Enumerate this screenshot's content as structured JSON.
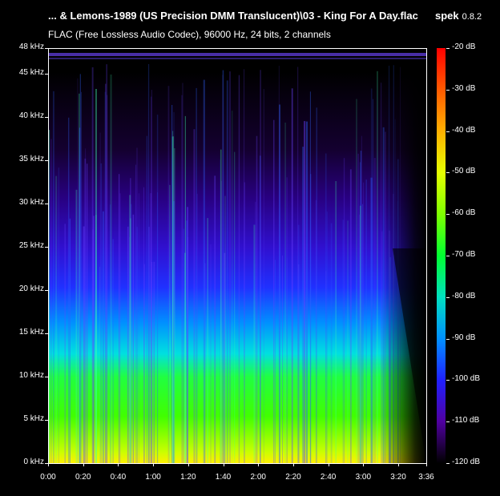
{
  "window": {
    "title": "... & Lemons-1989 (US Precision DMM Translucent)\\03 - King For A Day.flac",
    "app_name": "spek",
    "app_version": "0.8.2",
    "subtitle": "FLAC (Free Lossless Audio Codec), 96000 Hz, 24 bits, 2 channels"
  },
  "freq_axis": {
    "labels": [
      "48 kHz",
      "45 kHz",
      "40 kHz",
      "35 kHz",
      "30 kHz",
      "25 kHz",
      "20 kHz",
      "15 kHz",
      "10 kHz",
      "5 kHz",
      "0 kHz"
    ],
    "values_khz": [
      48,
      45,
      40,
      35,
      30,
      25,
      20,
      15,
      10,
      5,
      0
    ],
    "max_khz": 48
  },
  "time_axis": {
    "labels": [
      "0:00",
      "0:20",
      "0:40",
      "1:00",
      "1:20",
      "1:40",
      "2:00",
      "2:20",
      "2:40",
      "3:00",
      "3:20",
      "3:36"
    ],
    "values_s": [
      0,
      20,
      40,
      60,
      80,
      100,
      120,
      140,
      160,
      180,
      200,
      216
    ],
    "max_s": 216
  },
  "db_scale": {
    "labels": [
      "-20 dB",
      "-30 dB",
      "-40 dB",
      "-50 dB",
      "-60 dB",
      "-70 dB",
      "-80 dB",
      "-90 dB",
      "-100 dB",
      "-110 dB",
      "-120 dB"
    ],
    "values": [
      -20,
      -30,
      -40,
      -50,
      -60,
      -70,
      -80,
      -90,
      -100,
      -110,
      -120
    ]
  },
  "colors": {
    "background": "#000000",
    "text": "#ffffff"
  }
}
